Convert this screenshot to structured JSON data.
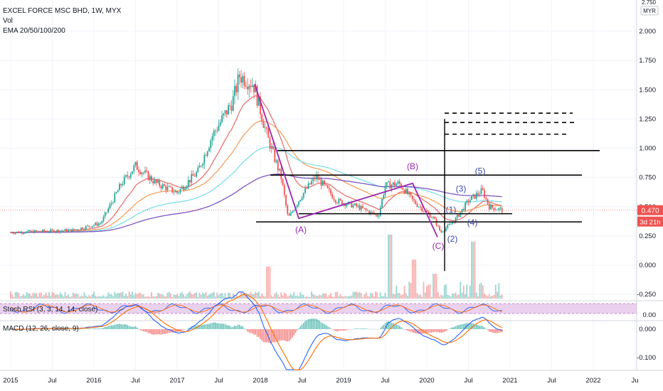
{
  "header": {
    "symbol_title": "EXCEL FORCE MSC BHD, 1W, MYX",
    "vol_label": "Vol",
    "ema_label": "EMA 20/50/100/200"
  },
  "price_scale": {
    "currency": "MYR",
    "top_partial": "2.750",
    "last_price": "0.470",
    "countdown": "3d 21h"
  },
  "indicators": {
    "stoch_label": "Stoch RSI (3, 3, 14, 14, close)",
    "macd_label": "MACD (12, 26, close, 9)"
  },
  "colors": {
    "up": "#26a69a",
    "down": "#ef5350",
    "ema20": "#e57373",
    "ema50": "#f4a261",
    "ema100": "#80deea",
    "ema200": "#7e57c2",
    "wave": "#9c27b0",
    "stoch_band": "#e1bee7",
    "price_tag": "#ef5350"
  },
  "chart_data": {
    "type": "candlestick",
    "x_ticks": [
      "2015",
      "Jul",
      "2016",
      "Jul",
      "2017",
      "Jul",
      "2018",
      "Jul",
      "2019",
      "Jul",
      "2020",
      "Jul",
      "2021",
      "Jul",
      "2022",
      "Ju"
    ],
    "y_ticks": [
      "2.000",
      "1.750",
      "1.500",
      "1.250",
      "1.000",
      "0.750",
      "0.500",
      "0.250",
      "0.000",
      "-0.250"
    ],
    "stoch_ticks": [
      "0.00"
    ],
    "macd_ticks": [
      "0.000",
      "-0.100"
    ],
    "wave_labels": [
      "(A)",
      "(B)",
      "(C)",
      "(1)",
      "(2)",
      "(3)",
      "(4)",
      "(5)"
    ],
    "price_keypoints": [
      {
        "date": "2015-01",
        "value": 0.28
      },
      {
        "date": "2015-10",
        "value": 0.3
      },
      {
        "date": "2016-02",
        "value": 0.36
      },
      {
        "date": "2016-05",
        "value": 0.7
      },
      {
        "date": "2016-07",
        "value": 0.85
      },
      {
        "date": "2016-10",
        "value": 0.7
      },
      {
        "date": "2017-01",
        "value": 0.62
      },
      {
        "date": "2017-04",
        "value": 0.8
      },
      {
        "date": "2017-06",
        "value": 1.1
      },
      {
        "date": "2017-09",
        "value": 1.4
      },
      {
        "date": "2017-10",
        "value": 1.62
      },
      {
        "date": "2017-12",
        "value": 1.55
      },
      {
        "date": "2018-02",
        "value": 1.1
      },
      {
        "date": "2018-04",
        "value": 0.75
      },
      {
        "date": "2018-05",
        "value": 0.4
      },
      {
        "date": "2018-07",
        "value": 0.6
      },
      {
        "date": "2018-09",
        "value": 0.76
      },
      {
        "date": "2018-12",
        "value": 0.55
      },
      {
        "date": "2019-03",
        "value": 0.5
      },
      {
        "date": "2019-06",
        "value": 0.42
      },
      {
        "date": "2019-07",
        "value": 0.68
      },
      {
        "date": "2019-09",
        "value": 0.7
      },
      {
        "date": "2019-11",
        "value": 0.55
      },
      {
        "date": "2020-02",
        "value": 0.4
      },
      {
        "date": "2020-03",
        "value": 0.28
      },
      {
        "date": "2020-05",
        "value": 0.38
      },
      {
        "date": "2020-07",
        "value": 0.55
      },
      {
        "date": "2020-09",
        "value": 0.64
      },
      {
        "date": "2020-10",
        "value": 0.5
      },
      {
        "date": "2020-12",
        "value": 0.47
      }
    ],
    "horizontal_levels": [
      0.37,
      0.44,
      0.77,
      0.98,
      1.12,
      1.22,
      1.3
    ],
    "grid": true
  }
}
